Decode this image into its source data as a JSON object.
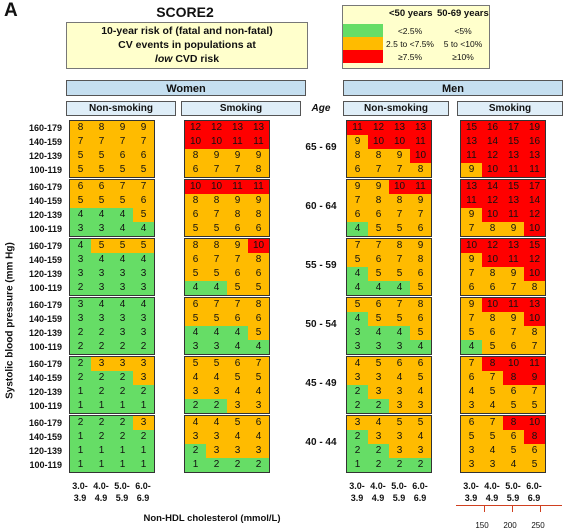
{
  "panel_letter": "A",
  "title": "SCORE2",
  "description": {
    "line1": "10-year risk of (fatal and non-fatal)",
    "line2": "CV events in populations at",
    "line3_emph": "low",
    "line3_rest": " CVD risk"
  },
  "legend": {
    "col1": "<50 years",
    "col2": "50-69 years",
    "rows": [
      {
        "color": "#66dd66",
        "a": "<2.5%",
        "b": "<5%"
      },
      {
        "color": "#ffbb00",
        "a": "2.5 to <7.5%",
        "b": "5 to <10%"
      },
      {
        "color": "#ff0000",
        "a": "≥7.5%",
        "b": "≥10%"
      }
    ]
  },
  "colors": {
    "low": "#66dd66",
    "mid": "#ffbb00",
    "high": "#ff0000"
  },
  "headers": {
    "women": "Women",
    "men": "Men",
    "non_smoking": "Non-smoking",
    "smoking": "Smoking",
    "age": "Age"
  },
  "axis": {
    "ylabel": "Systolic blood pressure (mm Hg)",
    "xlabel": "Non-HDL cholesterol (mmol/L)",
    "sbp_rows": [
      "160-179",
      "140-159",
      "120-139",
      "100-119"
    ],
    "chol_cols": [
      "3.0-\n3.9",
      "4.0-\n4.9",
      "5.0-\n5.9",
      "6.0-\n6.9"
    ],
    "mg_ticks": [
      "150",
      "200",
      "250"
    ]
  },
  "chart_data": {
    "type": "heatmap",
    "title": "SCORE2",
    "age_groups": [
      "65 - 69",
      "60 - 64",
      "55 - 59",
      "50 - 54",
      "45 - 49",
      "40 - 44"
    ],
    "row_labels": [
      "160-179",
      "140-159",
      "120-139",
      "100-119"
    ],
    "col_labels": [
      "3.0-3.9",
      "4.0-4.9",
      "5.0-5.9",
      "6.0-6.9"
    ],
    "groups": {
      "women_non_smoking": [
        [
          [
            8,
            8,
            9,
            9
          ],
          [
            7,
            7,
            7,
            7
          ],
          [
            5,
            5,
            6,
            6
          ],
          [
            5,
            5,
            5,
            5
          ]
        ],
        [
          [
            6,
            6,
            7,
            7
          ],
          [
            5,
            5,
            5,
            6
          ],
          [
            4,
            4,
            4,
            5
          ],
          [
            3,
            3,
            4,
            4
          ]
        ],
        [
          [
            4,
            5,
            5,
            5
          ],
          [
            3,
            4,
            4,
            4
          ],
          [
            3,
            3,
            3,
            3
          ],
          [
            2,
            3,
            3,
            3
          ]
        ],
        [
          [
            3,
            4,
            4,
            4
          ],
          [
            3,
            3,
            3,
            3
          ],
          [
            2,
            2,
            3,
            3
          ],
          [
            2,
            2,
            2,
            2
          ]
        ],
        [
          [
            2,
            3,
            3,
            3
          ],
          [
            2,
            2,
            2,
            3
          ],
          [
            1,
            2,
            2,
            2
          ],
          [
            1,
            1,
            1,
            1
          ]
        ],
        [
          [
            2,
            2,
            2,
            3
          ],
          [
            1,
            2,
            2,
            2
          ],
          [
            1,
            1,
            1,
            1
          ],
          [
            1,
            1,
            1,
            1
          ]
        ]
      ],
      "women_smoking": [
        [
          [
            12,
            12,
            13,
            13
          ],
          [
            10,
            10,
            11,
            11
          ],
          [
            8,
            9,
            9,
            9
          ],
          [
            6,
            7,
            7,
            8
          ]
        ],
        [
          [
            10,
            10,
            11,
            11
          ],
          [
            8,
            8,
            9,
            9
          ],
          [
            6,
            7,
            8,
            8
          ],
          [
            5,
            5,
            6,
            6
          ]
        ],
        [
          [
            8,
            8,
            9,
            10
          ],
          [
            6,
            7,
            7,
            8
          ],
          [
            5,
            5,
            6,
            6
          ],
          [
            4,
            4,
            5,
            5
          ]
        ],
        [
          [
            6,
            7,
            7,
            8
          ],
          [
            5,
            5,
            6,
            6
          ],
          [
            4,
            4,
            4,
            5
          ],
          [
            3,
            3,
            4,
            4
          ]
        ],
        [
          [
            5,
            5,
            6,
            7
          ],
          [
            4,
            4,
            5,
            5
          ],
          [
            3,
            3,
            4,
            4
          ],
          [
            2,
            2,
            3,
            3
          ]
        ],
        [
          [
            4,
            4,
            5,
            6
          ],
          [
            3,
            3,
            4,
            4
          ],
          [
            2,
            3,
            3,
            3
          ],
          [
            1,
            2,
            2,
            2
          ]
        ]
      ],
      "men_non_smoking": [
        [
          [
            11,
            12,
            13,
            13
          ],
          [
            9,
            10,
            10,
            11
          ],
          [
            8,
            8,
            9,
            10
          ],
          [
            6,
            7,
            7,
            8
          ]
        ],
        [
          [
            9,
            9,
            10,
            11
          ],
          [
            7,
            8,
            8,
            9
          ],
          [
            6,
            6,
            7,
            7
          ],
          [
            4,
            5,
            5,
            6
          ]
        ],
        [
          [
            7,
            7,
            8,
            9
          ],
          [
            5,
            6,
            7,
            8
          ],
          [
            4,
            5,
            5,
            6
          ],
          [
            4,
            4,
            4,
            5
          ]
        ],
        [
          [
            5,
            6,
            7,
            8
          ],
          [
            4,
            5,
            5,
            6
          ],
          [
            3,
            4,
            4,
            5
          ],
          [
            3,
            3,
            3,
            4
          ]
        ],
        [
          [
            4,
            5,
            6,
            6
          ],
          [
            3,
            3,
            4,
            5
          ],
          [
            2,
            3,
            3,
            4
          ],
          [
            2,
            2,
            3,
            3
          ]
        ],
        [
          [
            3,
            4,
            5,
            5
          ],
          [
            2,
            3,
            3,
            4
          ],
          [
            2,
            2,
            3,
            3
          ],
          [
            1,
            2,
            2,
            2
          ]
        ]
      ],
      "men_smoking": [
        [
          [
            15,
            16,
            17,
            19
          ],
          [
            13,
            14,
            15,
            16
          ],
          [
            11,
            12,
            13,
            13
          ],
          [
            9,
            10,
            11,
            11
          ]
        ],
        [
          [
            13,
            14,
            15,
            17
          ],
          [
            11,
            12,
            13,
            14
          ],
          [
            9,
            10,
            11,
            12
          ],
          [
            7,
            8,
            9,
            10
          ]
        ],
        [
          [
            10,
            12,
            13,
            15
          ],
          [
            9,
            10,
            11,
            12
          ],
          [
            7,
            8,
            9,
            10
          ],
          [
            6,
            6,
            7,
            8
          ]
        ],
        [
          [
            9,
            10,
            11,
            13
          ],
          [
            7,
            8,
            9,
            10
          ],
          [
            5,
            6,
            7,
            8
          ],
          [
            4,
            5,
            6,
            7
          ]
        ],
        [
          [
            7,
            8,
            10,
            11
          ],
          [
            6,
            7,
            8,
            9
          ],
          [
            4,
            5,
            6,
            7
          ],
          [
            3,
            4,
            5,
            5
          ]
        ],
        [
          [
            6,
            7,
            8,
            10
          ],
          [
            5,
            5,
            6,
            8
          ],
          [
            3,
            4,
            5,
            6
          ],
          [
            3,
            3,
            4,
            5
          ]
        ]
      ]
    },
    "age_band_under_50": [
      "45 - 49",
      "40 - 44"
    ],
    "thresholds": {
      "under_50": [
        2.5,
        7.5
      ],
      "50_69": [
        5,
        10
      ]
    }
  }
}
